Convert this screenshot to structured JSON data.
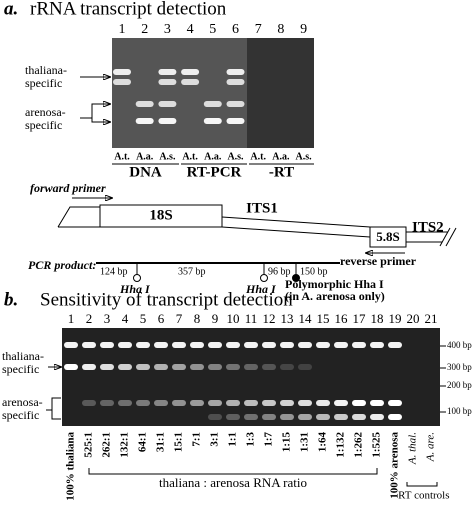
{
  "panel_a": {
    "label": "a.",
    "title": "rRNA transcript detection",
    "lanes": [
      "1",
      "2",
      "3",
      "4",
      "5",
      "6",
      "7",
      "8",
      "9"
    ],
    "band_labels": [
      [
        "thaliana-",
        "specific"
      ],
      [
        "arenosa-",
        "specific"
      ]
    ],
    "samples": [
      "A.t.",
      "A.a.",
      "A.s.",
      "A.t.",
      "A.a.",
      "A.s.",
      "A.t.",
      "A.a.",
      "A.s."
    ],
    "groups": [
      "DNA",
      "RT-PCR",
      "-RT"
    ]
  },
  "diagram": {
    "forward_primer": "forward primer",
    "regions": [
      "18S",
      "ITS1",
      "5.8S",
      "ITS2"
    ],
    "reverse_primer": "reverse primer",
    "pcr_product": "PCR product:",
    "fragments": [
      "124 bp",
      "357 bp",
      "96 bp",
      "150 bp"
    ],
    "sites": [
      "Hha I",
      "Hha I"
    ],
    "polymorphic_site": "Polymorphic Hha I",
    "polymorphic_note": "(in A. arenosa only)"
  },
  "panel_b": {
    "label": "b.",
    "title": "Sensitivity of transcript detection",
    "lanes": [
      "1",
      "2",
      "3",
      "4",
      "5",
      "6",
      "7",
      "8",
      "9",
      "10",
      "11",
      "12",
      "13",
      "14",
      "15",
      "16",
      "17",
      "18",
      "19",
      "20",
      "21"
    ],
    "band_labels": [
      [
        "thaliana-",
        "specific"
      ],
      [
        "arenosa-",
        "specific"
      ]
    ],
    "size_markers": [
      "400 bp",
      "300 bp",
      "200 bp",
      "100 bp"
    ],
    "control_left": "100% thaliana",
    "ratios": [
      "525:1",
      "262:1",
      "132:1",
      "64:1",
      "31:1",
      "15:1",
      "7:1",
      "3:1",
      "1:1",
      "1:3",
      "1:7",
      "1:15",
      "1:31",
      "1:64",
      "1:132",
      "1:262",
      "1:525"
    ],
    "ratio_caption": "thaliana : arenosa RNA ratio",
    "control_right": "100% arenosa",
    "rt_lanes": [
      "A. thal.",
      "A. are."
    ],
    "rt_caption": "-RT controls"
  }
}
